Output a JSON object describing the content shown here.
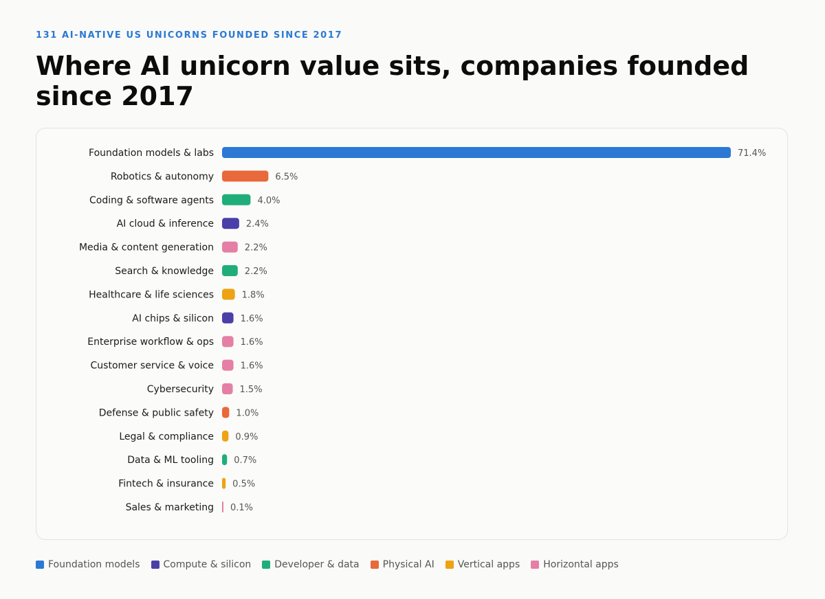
{
  "header": {
    "eyebrow": "131 AI-NATIVE US UNICORNS FOUNDED SINCE 2017",
    "title": "Where AI unicorn value sits, companies founded since 2017"
  },
  "legend": [
    {
      "name": "Foundation models",
      "key": "foundation",
      "color": "#2b79d4"
    },
    {
      "name": "Compute & silicon",
      "key": "compute",
      "color": "#4a3fa8"
    },
    {
      "name": "Developer & data",
      "key": "developer",
      "color": "#1fae7a"
    },
    {
      "name": "Physical AI",
      "key": "physical",
      "color": "#e8693a"
    },
    {
      "name": "Vertical apps",
      "key": "vertical",
      "color": "#eda314"
    },
    {
      "name": "Horizontal apps",
      "key": "horizontal",
      "color": "#e57fa6"
    }
  ],
  "chart_data": {
    "type": "bar",
    "orientation": "horizontal",
    "title": "",
    "xlabel": "",
    "ylabel": "",
    "grid": false,
    "legend_position": "bottom",
    "value_suffix": "%",
    "categories": [
      "Foundation models & labs",
      "Robotics & autonomy",
      "Coding & software agents",
      "AI cloud & inference",
      "Media & content generation",
      "Search & knowledge",
      "Healthcare & life sciences",
      "AI chips & silicon",
      "Enterprise workflow & ops",
      "Customer service & voice",
      "Cybersecurity",
      "Defense & public safety",
      "Legal & compliance",
      "Data & ML tooling",
      "Fintech & insurance",
      "Sales & marketing"
    ],
    "values": [
      71.4,
      6.5,
      4.0,
      2.4,
      2.2,
      2.2,
      1.8,
      1.6,
      1.6,
      1.6,
      1.5,
      1.0,
      0.9,
      0.7,
      0.5,
      0.1
    ],
    "value_labels": [
      "71.4%",
      "6.5%",
      "4.0%",
      "2.4%",
      "2.2%",
      "2.2%",
      "1.8%",
      "1.6%",
      "1.6%",
      "1.6%",
      "1.5%",
      "1.0%",
      "0.9%",
      "0.7%",
      "0.5%",
      "0.1%"
    ],
    "groups": [
      "foundation",
      "physical",
      "developer",
      "compute",
      "horizontal",
      "developer",
      "vertical",
      "compute",
      "horizontal",
      "horizontal",
      "horizontal",
      "physical",
      "vertical",
      "developer",
      "vertical",
      "horizontal"
    ],
    "xlim": [
      0,
      71.4
    ]
  }
}
